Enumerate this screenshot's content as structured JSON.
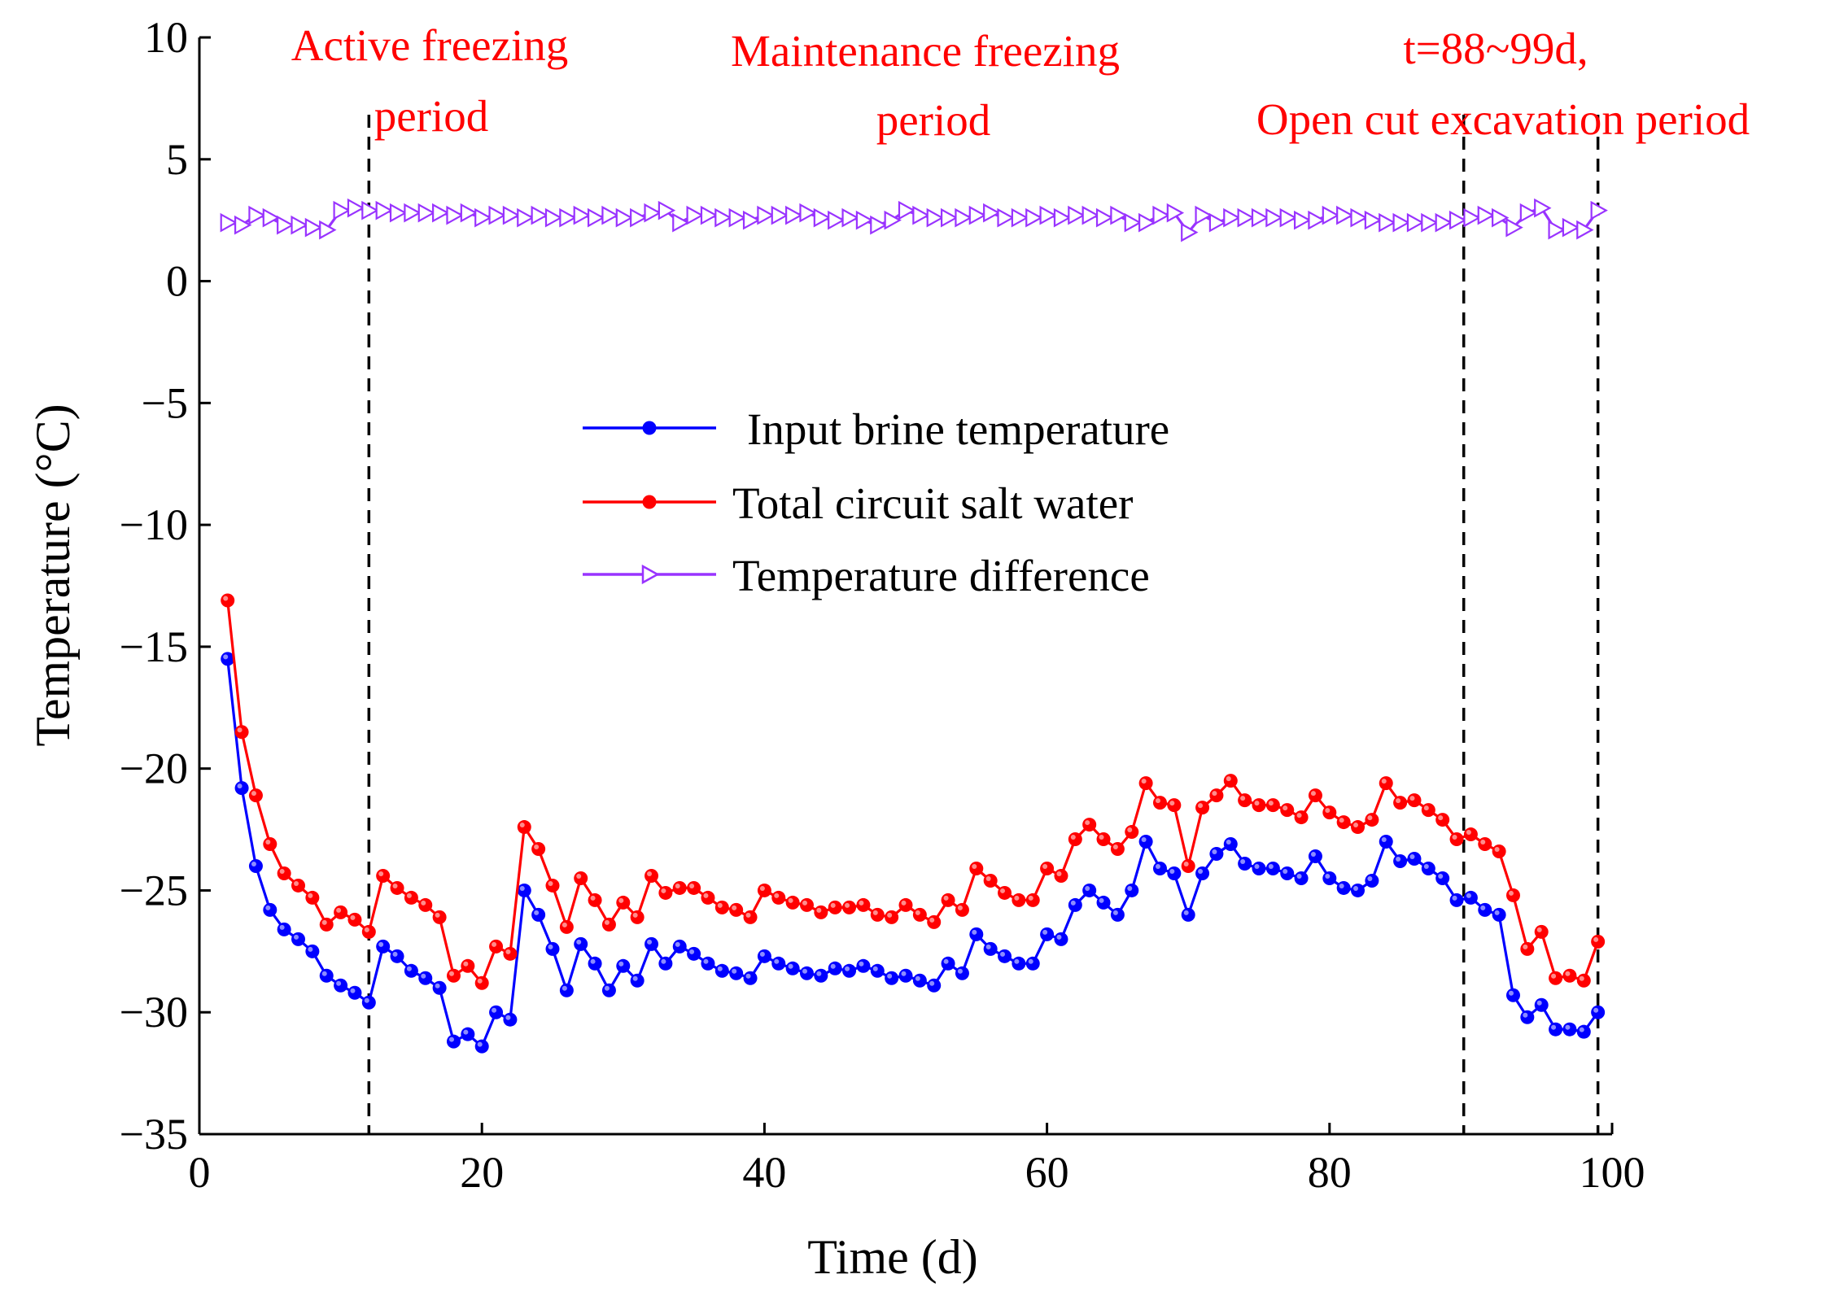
{
  "chart_data": {
    "type": "line",
    "title": "",
    "xlabel": "Time (d)",
    "ylabel": "Temperature (°C)",
    "xlim": [
      0,
      100
    ],
    "ylim": [
      -35,
      10
    ],
    "xticks": [
      0,
      20,
      40,
      60,
      80,
      100
    ],
    "yticks": [
      10,
      5,
      0,
      -5,
      -10,
      -15,
      -20,
      -25,
      -30,
      -35
    ],
    "grid": false,
    "legend_position": "center",
    "x": [
      2,
      3,
      4,
      5,
      6,
      7,
      8,
      9,
      10,
      11,
      12,
      13,
      14,
      15,
      16,
      17,
      18,
      19,
      20,
      21,
      22,
      23,
      24,
      25,
      26,
      27,
      28,
      29,
      30,
      31,
      32,
      33,
      34,
      35,
      36,
      37,
      38,
      39,
      40,
      41,
      42,
      43,
      44,
      45,
      46,
      47,
      48,
      49,
      50,
      51,
      52,
      53,
      54,
      55,
      56,
      57,
      58,
      59,
      60,
      61,
      62,
      63,
      64,
      65,
      66,
      67,
      68,
      69,
      70,
      71,
      72,
      73,
      74,
      75,
      76,
      77,
      78,
      79,
      80,
      81,
      82,
      83,
      84,
      85,
      86,
      87,
      88,
      89,
      90,
      91,
      92,
      93,
      94,
      95,
      96,
      97,
      98,
      99
    ],
    "series": [
      {
        "name": "Input brine temperature",
        "color": "#0000ff",
        "marker": "filled-circle",
        "values": [
          -15.5,
          -20.8,
          -24,
          -25.8,
          -26.6,
          -27,
          -27.5,
          -28.5,
          -28.9,
          -29.2,
          -29.6,
          -27.3,
          -27.7,
          -28.3,
          -28.6,
          -29,
          -31.2,
          -30.9,
          -31.4,
          -30,
          -30.3,
          -25,
          -26,
          -27.4,
          -29.1,
          -27.2,
          -28,
          -29.1,
          -28.1,
          -28.7,
          -27.2,
          -28,
          -27.3,
          -27.6,
          -28,
          -28.3,
          -28.4,
          -28.6,
          -27.7,
          -28,
          -28.2,
          -28.4,
          -28.5,
          -28.2,
          -28.3,
          -28.1,
          -28.3,
          -28.6,
          -28.5,
          -28.7,
          -28.9,
          -28,
          -28.4,
          -26.8,
          -27.4,
          -27.7,
          -28,
          -28,
          -26.8,
          -27,
          -25.6,
          -25,
          -25.5,
          -26,
          -25,
          -23,
          -24.1,
          -24.3,
          -26,
          -24.3,
          -23.5,
          -23.1,
          -23.9,
          -24.1,
          -24.1,
          -24.3,
          -24.5,
          -23.6,
          -24.5,
          -24.9,
          -25,
          -24.6,
          -23,
          -23.8,
          -23.7,
          -24.1,
          -24.5,
          -25.4,
          -25.3,
          -25.8,
          -26,
          -29.3,
          -30.2,
          -29.7,
          -30.7,
          -30.7,
          -30.8,
          -30
        ],
        "anomalous_value_note": ""
      },
      {
        "name": "Total circuit salt water",
        "color": "#ff0000",
        "marker": "filled-circle",
        "values": [
          -13.1,
          -18.5,
          -21.1,
          -23.1,
          -24.3,
          -24.8,
          -25.3,
          -26.4,
          -25.9,
          -26.2,
          -26.7,
          -24.4,
          -24.9,
          -25.3,
          -25.6,
          -26.1,
          -28.5,
          -28.1,
          -28.8,
          -27.3,
          -27.6,
          -22.4,
          -23.3,
          -24.8,
          -26.5,
          -24.5,
          -25.4,
          -26.4,
          -25.5,
          -26.1,
          -24.4,
          -25.1,
          -24.9,
          -24.9,
          -25.3,
          -25.7,
          -25.8,
          -26.1,
          -25,
          -25.3,
          -25.5,
          -25.6,
          -25.9,
          -25.7,
          -25.7,
          -25.6,
          -26,
          -26.1,
          -25.6,
          -26,
          -26.3,
          -25.4,
          -25.8,
          -24.1,
          -24.6,
          -25.1,
          -25.4,
          -25.4,
          -24.1,
          -24.4,
          -22.9,
          -22.3,
          -22.9,
          -23.3,
          -22.6,
          -20.6,
          -21.4,
          -21.5,
          -24,
          -21.6,
          -21.1,
          -20.5,
          -21.3,
          -21.5,
          -21.5,
          -21.7,
          -22,
          -21.1,
          -21.8,
          -22.2,
          -22.4,
          -22.1,
          -20.6,
          -21.4,
          -21.3,
          -21.7,
          -22.1,
          -22.9,
          -22.7,
          -23.1,
          -23.4,
          -25.2,
          -27.4,
          -26.7,
          -28.6,
          -28.5,
          -28.7,
          -27.1
        ]
      },
      {
        "name": "Temperature difference",
        "color": "#9933ff",
        "marker": "open-right-triangle",
        "values": [
          2.4,
          2.3,
          2.7,
          2.6,
          2.3,
          2.3,
          2.2,
          2.1,
          2.9,
          3,
          2.9,
          2.9,
          2.8,
          2.8,
          2.8,
          2.8,
          2.7,
          2.8,
          2.6,
          2.7,
          2.7,
          2.6,
          2.7,
          2.6,
          2.6,
          2.7,
          2.6,
          2.7,
          2.6,
          2.6,
          2.8,
          2.9,
          2.4,
          2.7,
          2.7,
          2.6,
          2.6,
          2.5,
          2.7,
          2.7,
          2.7,
          2.8,
          2.6,
          2.5,
          2.6,
          2.5,
          2.3,
          2.5,
          2.9,
          2.7,
          2.6,
          2.6,
          2.6,
          2.7,
          2.8,
          2.6,
          2.6,
          2.6,
          2.7,
          2.6,
          2.7,
          2.7,
          2.6,
          2.7,
          2.4,
          2.4,
          2.7,
          2.8,
          2,
          2.7,
          2.4,
          2.6,
          2.6,
          2.6,
          2.6,
          2.6,
          2.5,
          2.5,
          2.7,
          2.7,
          2.6,
          2.5,
          2.4,
          2.4,
          2.4,
          2.4,
          2.4,
          2.5,
          2.6,
          2.7,
          2.6,
          2.2,
          2.8,
          3,
          2.1,
          2.2,
          2.1,
          2.9
        ]
      }
    ],
    "vertical_lines_x": [
      12,
      89.5,
      99
    ]
  },
  "annotations": {
    "active_line1": "Active freezing",
    "active_line2": "period",
    "maint_line1": "Maintenance freezing",
    "maint_line2": "period",
    "open_line1": "t=88~99d,",
    "open_line2": "Open cut excavation period"
  },
  "legend": {
    "item1": "Input brine temperature",
    "item2": "Total circuit salt water",
    "item3": "Temperature difference"
  },
  "axes": {
    "xlabel": "Time (d)",
    "ylabel": "Temperature (°C)"
  }
}
